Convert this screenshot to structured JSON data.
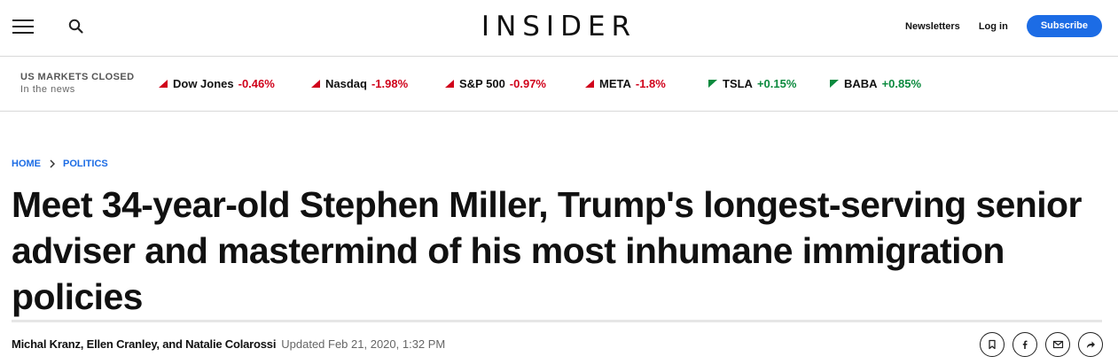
{
  "header": {
    "logo": "INSIDER",
    "newsletters": "Newsletters",
    "login": "Log in",
    "subscribe": "Subscribe"
  },
  "markets": {
    "status": "US MARKETS CLOSED",
    "subtitle": "In the news",
    "tickers": [
      {
        "name": "Dow Jones",
        "change": "-0.46%",
        "direction": "down"
      },
      {
        "name": "Nasdaq",
        "change": "-1.98%",
        "direction": "down"
      },
      {
        "name": "S&P 500",
        "change": "-0.97%",
        "direction": "down"
      },
      {
        "name": "META",
        "change": "-1.8%",
        "direction": "down"
      },
      {
        "name": "TSLA",
        "change": "+0.15%",
        "direction": "up"
      },
      {
        "name": "BABA",
        "change": "+0.85%",
        "direction": "up"
      }
    ]
  },
  "breadcrumb": {
    "home": "HOME",
    "section": "POLITICS"
  },
  "article": {
    "headline": "Meet 34-year-old Stephen Miller, Trump's longest-serving senior adviser and mastermind of his most inhumane immigration policies",
    "authors": "Michal Kranz, Ellen Cranley, and Natalie Colarossi",
    "updated": "Updated Feb 21, 2020, 1:32 PM"
  },
  "colors": {
    "accent": "#1c6ce5",
    "negative": "#d0021b",
    "positive": "#0b8a3e"
  },
  "icons": {
    "menu": "hamburger-icon",
    "search": "search-icon",
    "share": [
      "bookmark-icon",
      "facebook-icon",
      "email-icon",
      "share-arrow-icon"
    ]
  }
}
